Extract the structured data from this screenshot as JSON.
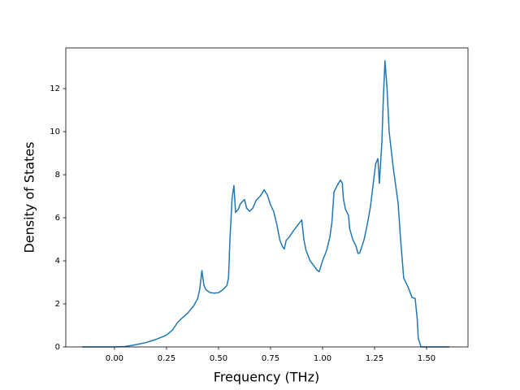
{
  "chart_data": {
    "type": "line",
    "xlabel": "Frequency (THz)",
    "ylabel": "Density of States",
    "x": [
      -0.156,
      0.0,
      0.05,
      0.1,
      0.15,
      0.2,
      0.25,
      0.28,
      0.3,
      0.32,
      0.35,
      0.38,
      0.4,
      0.41,
      0.42,
      0.43,
      0.44,
      0.46,
      0.48,
      0.5,
      0.52,
      0.54,
      0.548,
      0.555,
      0.565,
      0.574,
      0.582,
      0.595,
      0.605,
      0.625,
      0.635,
      0.65,
      0.665,
      0.68,
      0.7,
      0.72,
      0.735,
      0.75,
      0.765,
      0.78,
      0.795,
      0.808,
      0.816,
      0.825,
      0.84,
      0.86,
      0.88,
      0.9,
      0.91,
      0.92,
      0.94,
      0.96,
      0.975,
      0.984,
      1.0,
      1.02,
      1.035,
      1.045,
      1.055,
      1.07,
      1.086,
      1.095,
      1.1,
      1.11,
      1.125,
      1.13,
      1.145,
      1.16,
      1.17,
      1.178,
      1.19,
      1.2,
      1.215,
      1.23,
      1.24,
      1.255,
      1.266,
      1.273,
      1.285,
      1.292,
      1.3,
      1.31,
      1.32,
      1.34,
      1.363,
      1.375,
      1.39,
      1.41,
      1.43,
      1.445,
      1.455,
      1.46,
      1.473,
      1.5,
      1.55,
      1.61
    ],
    "series": [
      {
        "color": "#1f77b4",
        "values": [
          0,
          0,
          0.02,
          0.1,
          0.2,
          0.35,
          0.55,
          0.8,
          1.1,
          1.3,
          1.55,
          1.9,
          2.25,
          2.7,
          3.55,
          2.85,
          2.65,
          2.52,
          2.5,
          2.52,
          2.65,
          2.85,
          3.2,
          5.0,
          6.9,
          7.5,
          6.25,
          6.4,
          6.65,
          6.85,
          6.45,
          6.3,
          6.45,
          6.8,
          7.0,
          7.3,
          7.05,
          6.6,
          6.3,
          5.7,
          4.95,
          4.65,
          4.55,
          4.95,
          5.1,
          5.4,
          5.65,
          5.9,
          5.0,
          4.5,
          4.0,
          3.75,
          3.55,
          3.5,
          4.0,
          4.5,
          5.1,
          5.8,
          7.2,
          7.5,
          7.75,
          7.6,
          6.9,
          6.4,
          6.1,
          5.5,
          5.0,
          4.7,
          4.35,
          4.35,
          4.7,
          5.0,
          5.7,
          6.5,
          7.3,
          8.5,
          8.75,
          7.6,
          9.5,
          11.5,
          13.3,
          12.0,
          10.0,
          8.3,
          6.7,
          5.0,
          3.2,
          2.8,
          2.3,
          2.25,
          1.3,
          0.4,
          0,
          0,
          0,
          0
        ]
      }
    ],
    "xlim": [
      -0.234,
      1.699
    ],
    "ylim": [
      0,
      13.89
    ],
    "xticks": [
      {
        "value": 0,
        "label": "0.00"
      },
      {
        "value": 0.25,
        "label": "0.25"
      },
      {
        "value": 0.5,
        "label": "0.50"
      },
      {
        "value": 0.75,
        "label": "0.75"
      },
      {
        "value": 1,
        "label": "1.00"
      },
      {
        "value": 1.25,
        "label": "1.25"
      },
      {
        "value": 1.5,
        "label": "1.50"
      }
    ],
    "yticks": [
      0,
      2,
      4,
      6,
      8,
      10,
      12
    ]
  }
}
